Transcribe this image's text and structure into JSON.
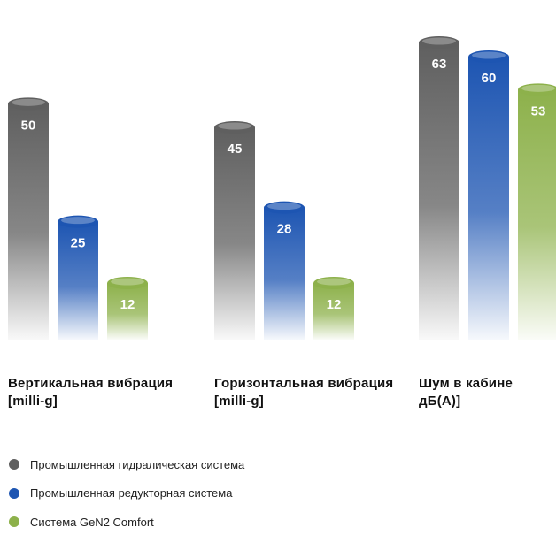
{
  "chart_data": {
    "type": "bar",
    "categories": [
      "Вертикальная вибрация\n[milli-g]",
      "Горизонтальная вибрация\n[milli-g]",
      "Шум в кабине\nдБ(A)]"
    ],
    "series": [
      {
        "name": "Промышленная гидралическая система",
        "values": [
          50,
          45,
          63
        ],
        "color": "#5f5f5f"
      },
      {
        "name": "Промышленная редукторная система",
        "values": [
          25,
          28,
          60
        ],
        "color": "#1d55b2"
      },
      {
        "name": "Система GeN2 Comfort",
        "values": [
          12,
          12,
          53
        ],
        "color": "#8db14b"
      }
    ],
    "value_labels": true,
    "legend_position": "bottom-left",
    "grid": false,
    "title": "",
    "xlabel": "",
    "ylabel": ""
  }
}
